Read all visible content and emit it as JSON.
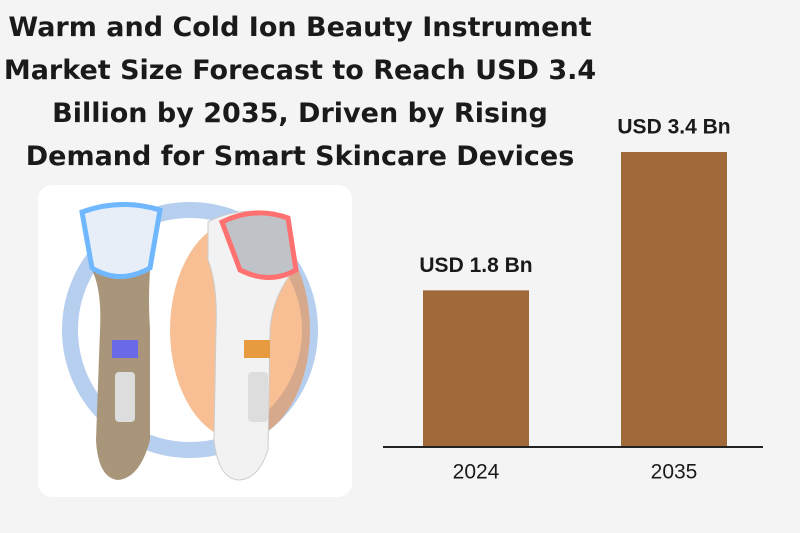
{
  "chart_data": {
    "type": "bar",
    "title": "Warm and Cold Ion Beauty Instrument Market Size Forecast to Reach USD 3.4 Billion by 2035, Driven by Rising Demand for Smart Skincare Devices",
    "categories": [
      "2024",
      "2035"
    ],
    "values": [
      1.8,
      3.4
    ],
    "value_labels": [
      "USD 1.8 Bn",
      "USD 3.4 Bn"
    ],
    "color": "#a0693a"
  }
}
